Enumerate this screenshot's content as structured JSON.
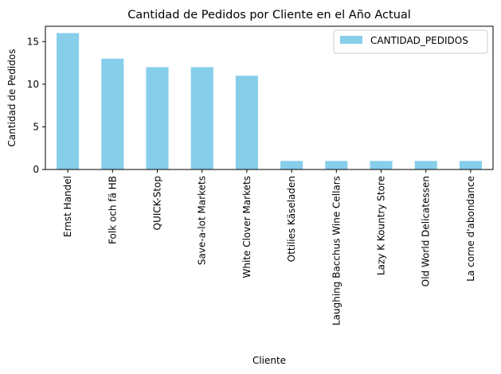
{
  "chart_data": {
    "type": "bar",
    "title": "Cantidad de Pedidos por Cliente en el Año Actual",
    "xlabel": "Cliente",
    "ylabel": "Cantidad de Pedidos",
    "categories": [
      "Ernst Handel",
      "Folk och fä HB",
      "QUICK-Stop",
      "Save-a-lot Markets",
      "White Clover Markets",
      "Ottilies Käseladen",
      "Laughing Bacchus Wine Cellars",
      "Lazy K Kountry Store",
      "Old World Delicatessen",
      "La corne d'abondance"
    ],
    "series": [
      {
        "name": "CANTIDAD_PEDIDOS",
        "values": [
          16,
          13,
          12,
          12,
          11,
          1,
          1,
          1,
          1,
          1
        ]
      }
    ],
    "ylim": [
      0,
      16.8
    ],
    "yticks": [
      0,
      5,
      10,
      15
    ],
    "grid": false,
    "legend_position": "top-right",
    "bar_color": "#87ceeb"
  }
}
